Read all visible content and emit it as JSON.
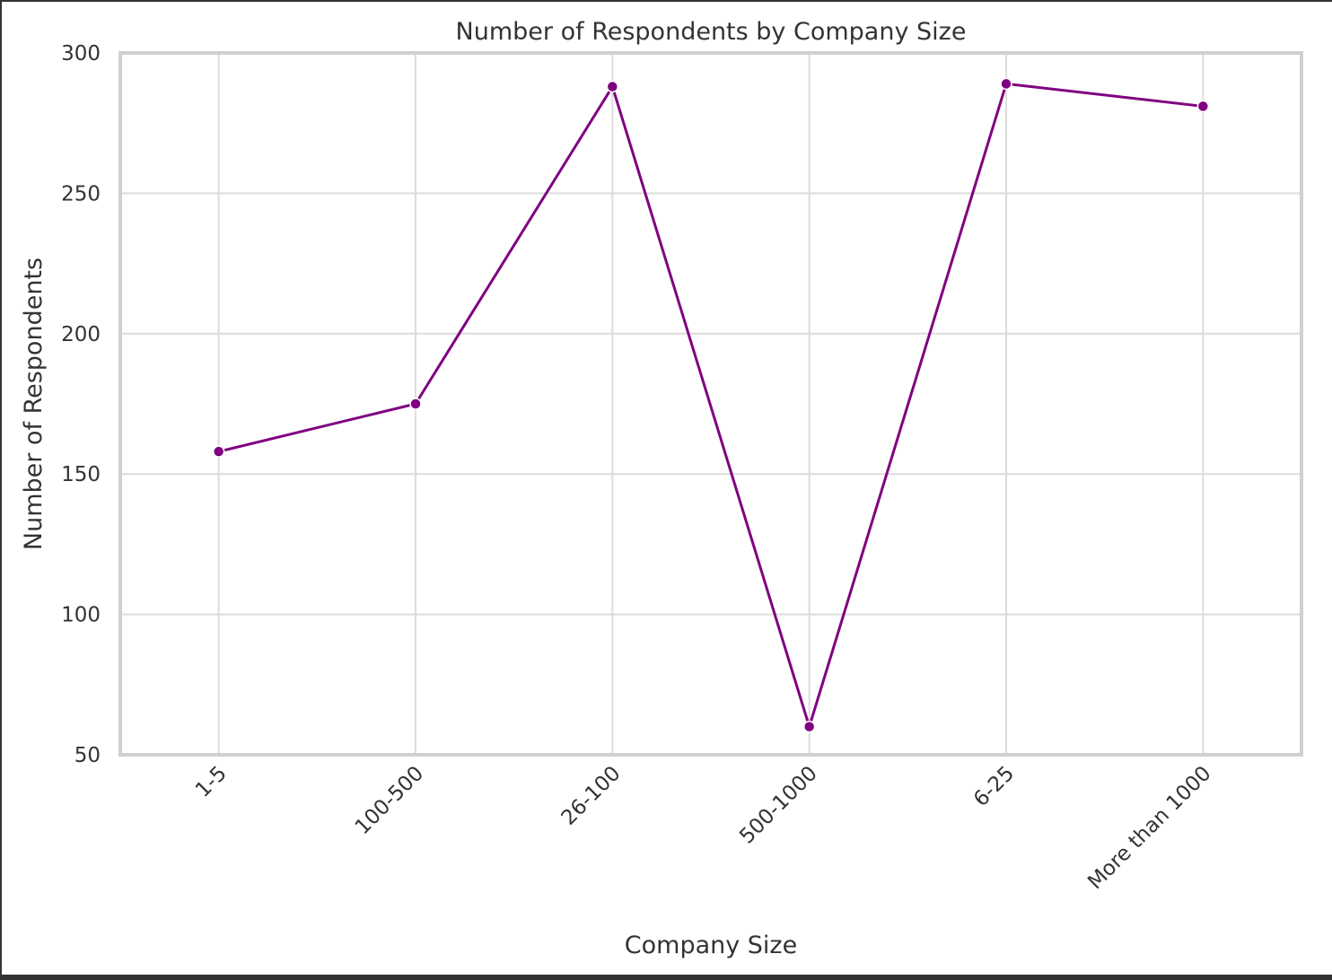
{
  "chart_data": {
    "type": "line",
    "title": "Number of Respondents by Company Size",
    "xlabel": "Company Size",
    "ylabel": "Number of Respondents",
    "categories": [
      "1-5",
      "100-500",
      "26-100",
      "500-1000",
      "6-25",
      "More than 1000"
    ],
    "series": [
      {
        "values": [
          158,
          175,
          288,
          60,
          289,
          281
        ]
      }
    ],
    "ylim": [
      50,
      300
    ],
    "yticks": [
      50,
      100,
      150,
      200,
      250,
      300
    ],
    "grid": true,
    "legend": "none",
    "colors": {
      "line": "#800080",
      "grid": "#dcdcdc",
      "frame": "#d0d0d0",
      "text": "#333333"
    }
  }
}
